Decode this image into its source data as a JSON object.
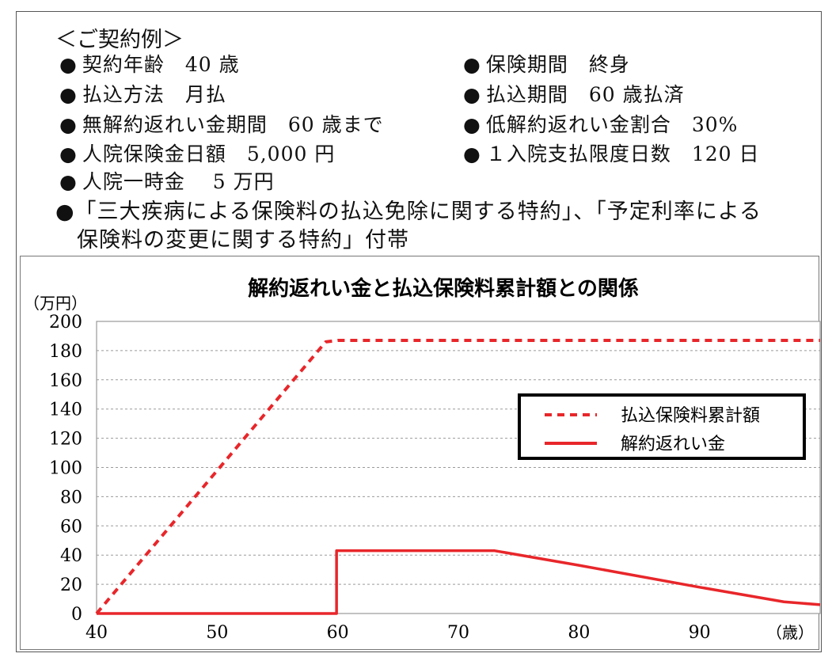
{
  "heading": "＜ご契約例＞",
  "conditions_left": [
    "契約年齢　40 歳",
    "払込方法　月払",
    "無解約返れい金期間　60 歳まで",
    "人院保険金日額　5,000 円",
    "人院一時金　 5 万円"
  ],
  "conditions_right": [
    "保険期間　終身",
    "払込期間　60 歳払済",
    "低解約返れい金割合　30%",
    "１入院支払限度日数　120 日"
  ],
  "bullet_symbol": "●",
  "riders_note": {
    "line1": "●「三大疾病による保険料の払込免除に関する特約」、「予定利率による",
    "line2": "保険料の変更に関する特約」付帯"
  },
  "chart_data": {
    "type": "line",
    "title": "解約返れい金と払込保険料累計額との関係",
    "ylabel": "（万円）",
    "xlabel": "（歳）",
    "xlim": [
      40,
      100
    ],
    "ylim": [
      0,
      200
    ],
    "x_ticks": [
      40,
      50,
      60,
      70,
      80,
      90
    ],
    "y_ticks": [
      0,
      20,
      40,
      60,
      80,
      100,
      120,
      140,
      160,
      180,
      200
    ],
    "grid": true,
    "legend_position": "right",
    "series": [
      {
        "name": "払込保険料累計額",
        "style": "dashed",
        "color": "#e8262a",
        "x": [
          40,
          59,
          60,
          100
        ],
        "y": [
          0,
          186,
          187,
          187
        ]
      },
      {
        "name": "解約返れい金",
        "style": "solid",
        "color": "#e8262a",
        "x": [
          40,
          59.9,
          59.9,
          73,
          80,
          90,
          97,
          100
        ],
        "y": [
          0,
          0,
          43,
          43,
          33,
          18,
          8,
          6
        ]
      }
    ]
  }
}
